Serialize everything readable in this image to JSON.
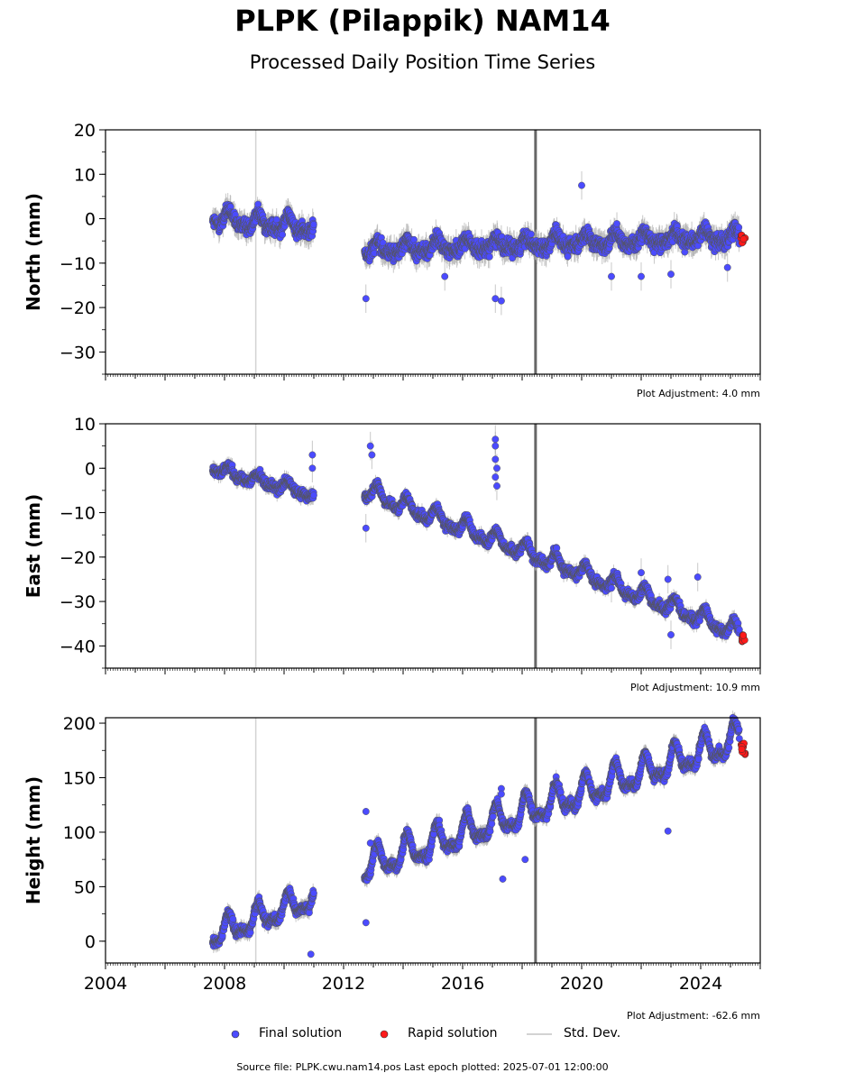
{
  "title": "PLPK (Pilappik) NAM14",
  "subtitle": "Processed Daily Position Time Series",
  "source_line": "Source file: PLPK.cwu.nam14.pos  Last epoch plotted: 2025-07-01 12:00:00",
  "legend": {
    "final": "Final solution",
    "rapid": "Rapid solution",
    "std": "Std. Dev."
  },
  "colors": {
    "final": "#4b4bff",
    "rapid": "#ff1a1a",
    "std": "#b0b0b0",
    "marker_line": "#555555",
    "thin_line": "#d3d3d3"
  },
  "chart_data": [
    {
      "type": "scatter",
      "ylabel": "North (mm)",
      "ylim": [
        -35,
        20
      ],
      "yticks": [
        -30,
        -20,
        -10,
        0,
        10,
        20
      ],
      "xlim": [
        2004,
        2026
      ],
      "adjustment": "Plot Adjustment: 4.0 mm",
      "vlines": [
        {
          "x": 2009.05,
          "style": "thin"
        },
        {
          "x": 2018.45,
          "style": "thick"
        }
      ],
      "segments": [
        {
          "x0": 2007.6,
          "x1": 2011.0,
          "trend": [
            0,
            -2
          ],
          "noise": 2.0,
          "seasonal": 1.5
        },
        {
          "x0": 2012.7,
          "x1": 2025.3,
          "trend": [
            -7,
            -4
          ],
          "noise": 2.0,
          "seasonal": 1.2
        }
      ],
      "outliers": [
        [
          2012.75,
          -18
        ],
        [
          2017.1,
          -18
        ],
        [
          2017.3,
          -18.5
        ],
        [
          2020.0,
          7.5
        ],
        [
          2021.0,
          -13
        ],
        [
          2022.0,
          -13
        ],
        [
          2023.0,
          -12.5
        ],
        [
          2024.9,
          -11
        ],
        [
          2015.4,
          -13
        ]
      ],
      "rapid": {
        "x0": 2025.35,
        "x1": 2025.5,
        "level": -4.5,
        "spread": 1.0
      }
    },
    {
      "type": "scatter",
      "ylabel": "East (mm)",
      "ylim": [
        -45,
        10
      ],
      "yticks": [
        -40,
        -30,
        -20,
        -10,
        0,
        10
      ],
      "xlim": [
        2004,
        2026
      ],
      "adjustment": "Plot Adjustment: 10.9 mm",
      "vlines": [
        {
          "x": 2009.05,
          "style": "thin"
        },
        {
          "x": 2018.45,
          "style": "thick"
        }
      ],
      "segments": [
        {
          "x0": 2007.6,
          "x1": 2011.0,
          "trend": [
            0,
            -6
          ],
          "noise": 1.2,
          "seasonal": 1.0
        },
        {
          "x0": 2012.7,
          "x1": 2025.3,
          "trend": [
            -5,
            -37
          ],
          "noise": 1.2,
          "seasonal": 1.5
        }
      ],
      "outliers": [
        [
          2012.75,
          -13.5
        ],
        [
          2012.9,
          5
        ],
        [
          2012.95,
          3
        ],
        [
          2017.1,
          6.5
        ],
        [
          2017.1,
          5
        ],
        [
          2017.1,
          2
        ],
        [
          2017.15,
          0
        ],
        [
          2017.1,
          -2
        ],
        [
          2017.15,
          -4
        ],
        [
          2022.0,
          -23.5
        ],
        [
          2022.9,
          -25
        ],
        [
          2023.0,
          -37.5
        ],
        [
          2023.9,
          -24.5
        ],
        [
          2010.95,
          3
        ],
        [
          2010.95,
          0
        ],
        [
          2021.0,
          -27
        ]
      ],
      "rapid": {
        "x0": 2025.35,
        "x1": 2025.5,
        "level": -38.5,
        "spread": 1.0
      }
    },
    {
      "type": "scatter",
      "ylabel": "Height (mm)",
      "ylim": [
        -20,
        205
      ],
      "yticks": [
        0,
        50,
        100,
        150,
        200
      ],
      "xticks": [
        2004,
        2008,
        2012,
        2016,
        2020,
        2024
      ],
      "xlim": [
        2004,
        2026
      ],
      "adjustment": "Plot Adjustment: -62.6 mm",
      "vlines": [
        {
          "x": 2009.05,
          "style": "thin"
        },
        {
          "x": 2018.45,
          "style": "thick"
        }
      ],
      "segments": [
        {
          "x0": 2007.6,
          "x1": 2011.0,
          "trend": [
            5,
            40
          ],
          "noise": 5,
          "seasonal": 10
        },
        {
          "x0": 2012.7,
          "x1": 2025.3,
          "trend": [
            68,
            185
          ],
          "noise": 5,
          "seasonal": 12
        }
      ],
      "outliers": [
        [
          2012.75,
          119
        ],
        [
          2012.75,
          17
        ],
        [
          2012.9,
          90
        ],
        [
          2017.3,
          140
        ],
        [
          2017.3,
          135
        ],
        [
          2018.1,
          75
        ],
        [
          2022.9,
          101
        ],
        [
          2010.9,
          -12
        ],
        [
          2017.35,
          57
        ]
      ],
      "rapid": {
        "x0": 2025.35,
        "x1": 2025.5,
        "level": 176,
        "spread": 6
      }
    }
  ]
}
